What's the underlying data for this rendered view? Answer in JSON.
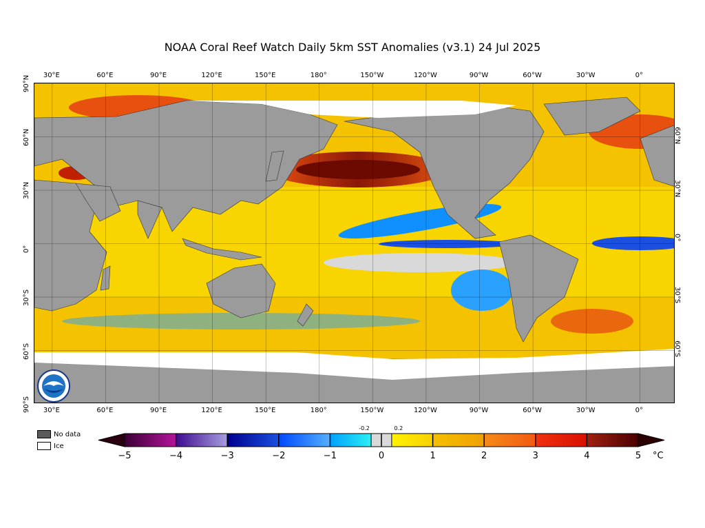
{
  "title": "NOAA Coral Reef Watch Daily 5km SST Anomalies  (v3.1)   24 Jul 2025",
  "map": {
    "lon_range": [
      20,
      380
    ],
    "lat_range": [
      -90,
      90
    ],
    "lon_ticks": [
      {
        "value": 30,
        "label": "30°E"
      },
      {
        "value": 60,
        "label": "60°E"
      },
      {
        "value": 90,
        "label": "90°E"
      },
      {
        "value": 120,
        "label": "120°E"
      },
      {
        "value": 150,
        "label": "150°E"
      },
      {
        "value": 180,
        "label": "180°"
      },
      {
        "value": 210,
        "label": "150°W"
      },
      {
        "value": 240,
        "label": "120°W"
      },
      {
        "value": 270,
        "label": "90°W"
      },
      {
        "value": 300,
        "label": "60°W"
      },
      {
        "value": 330,
        "label": "30°W"
      },
      {
        "value": 360,
        "label": "0°"
      }
    ],
    "lat_ticks_left": [
      {
        "value": 90,
        "label": "90°N"
      },
      {
        "value": 60,
        "label": "60°N"
      },
      {
        "value": 30,
        "label": "30°N"
      },
      {
        "value": 0,
        "label": "0°"
      },
      {
        "value": -30,
        "label": "30°S"
      },
      {
        "value": -60,
        "label": "60°S"
      },
      {
        "value": -90,
        "label": "90°S"
      }
    ],
    "lat_ticks_right": [
      {
        "value": 60,
        "label": "60°N"
      },
      {
        "value": 30,
        "label": "30°N"
      },
      {
        "value": 0,
        "label": "0°"
      },
      {
        "value": -30,
        "label": "30°S"
      },
      {
        "value": -60,
        "label": "60°S"
      }
    ],
    "colors": {
      "land": "#9b9b9b",
      "ice": "#ffffff",
      "grid": "#000000"
    }
  },
  "legend": {
    "no_data_label": "No data",
    "ice_label": "Ice",
    "no_data_color": "#5a5a5a",
    "ice_color": "#ffffff"
  },
  "colorbar": {
    "min": -5,
    "max": 5,
    "unit": "°C",
    "tick_labels": [
      "−5",
      "−4",
      "−3",
      "−2",
      "−1",
      "0",
      "1",
      "2",
      "3",
      "4",
      "5"
    ],
    "small_labels": [
      {
        "value": -0.2,
        "label": "-0.2"
      },
      {
        "value": 0.2,
        "label": "0.2"
      }
    ],
    "under_color": "#2a0010",
    "over_color": "#2b0000",
    "segments": [
      {
        "from": -5,
        "to": -4,
        "c0": "#3a0035",
        "c1": "#b4149b"
      },
      {
        "from": -4,
        "to": -3,
        "c0": "#3e0c8f",
        "c1": "#a89ee0"
      },
      {
        "from": -3,
        "to": -2,
        "c0": "#00008f",
        "c1": "#1b4fe0"
      },
      {
        "from": -2,
        "to": -1,
        "c0": "#0048ff",
        "c1": "#55b0ff"
      },
      {
        "from": -1,
        "to": -0.2,
        "c0": "#00a0ff",
        "c1": "#2af0f2"
      },
      {
        "from": -0.2,
        "to": 0.2,
        "c0": "#d9d9d9",
        "c1": "#d9d9d9"
      },
      {
        "from": 0.2,
        "to": 1,
        "c0": "#fff200",
        "c1": "#f7d000"
      },
      {
        "from": 1,
        "to": 2,
        "c0": "#f4c000",
        "c1": "#f0a000"
      },
      {
        "from": 2,
        "to": 3,
        "c0": "#f58a1a",
        "c1": "#f25a10"
      },
      {
        "from": 3,
        "to": 4,
        "c0": "#f03010",
        "c1": "#d81000"
      },
      {
        "from": 4,
        "to": 5,
        "c0": "#a02010",
        "c1": "#4a0000"
      }
    ]
  }
}
